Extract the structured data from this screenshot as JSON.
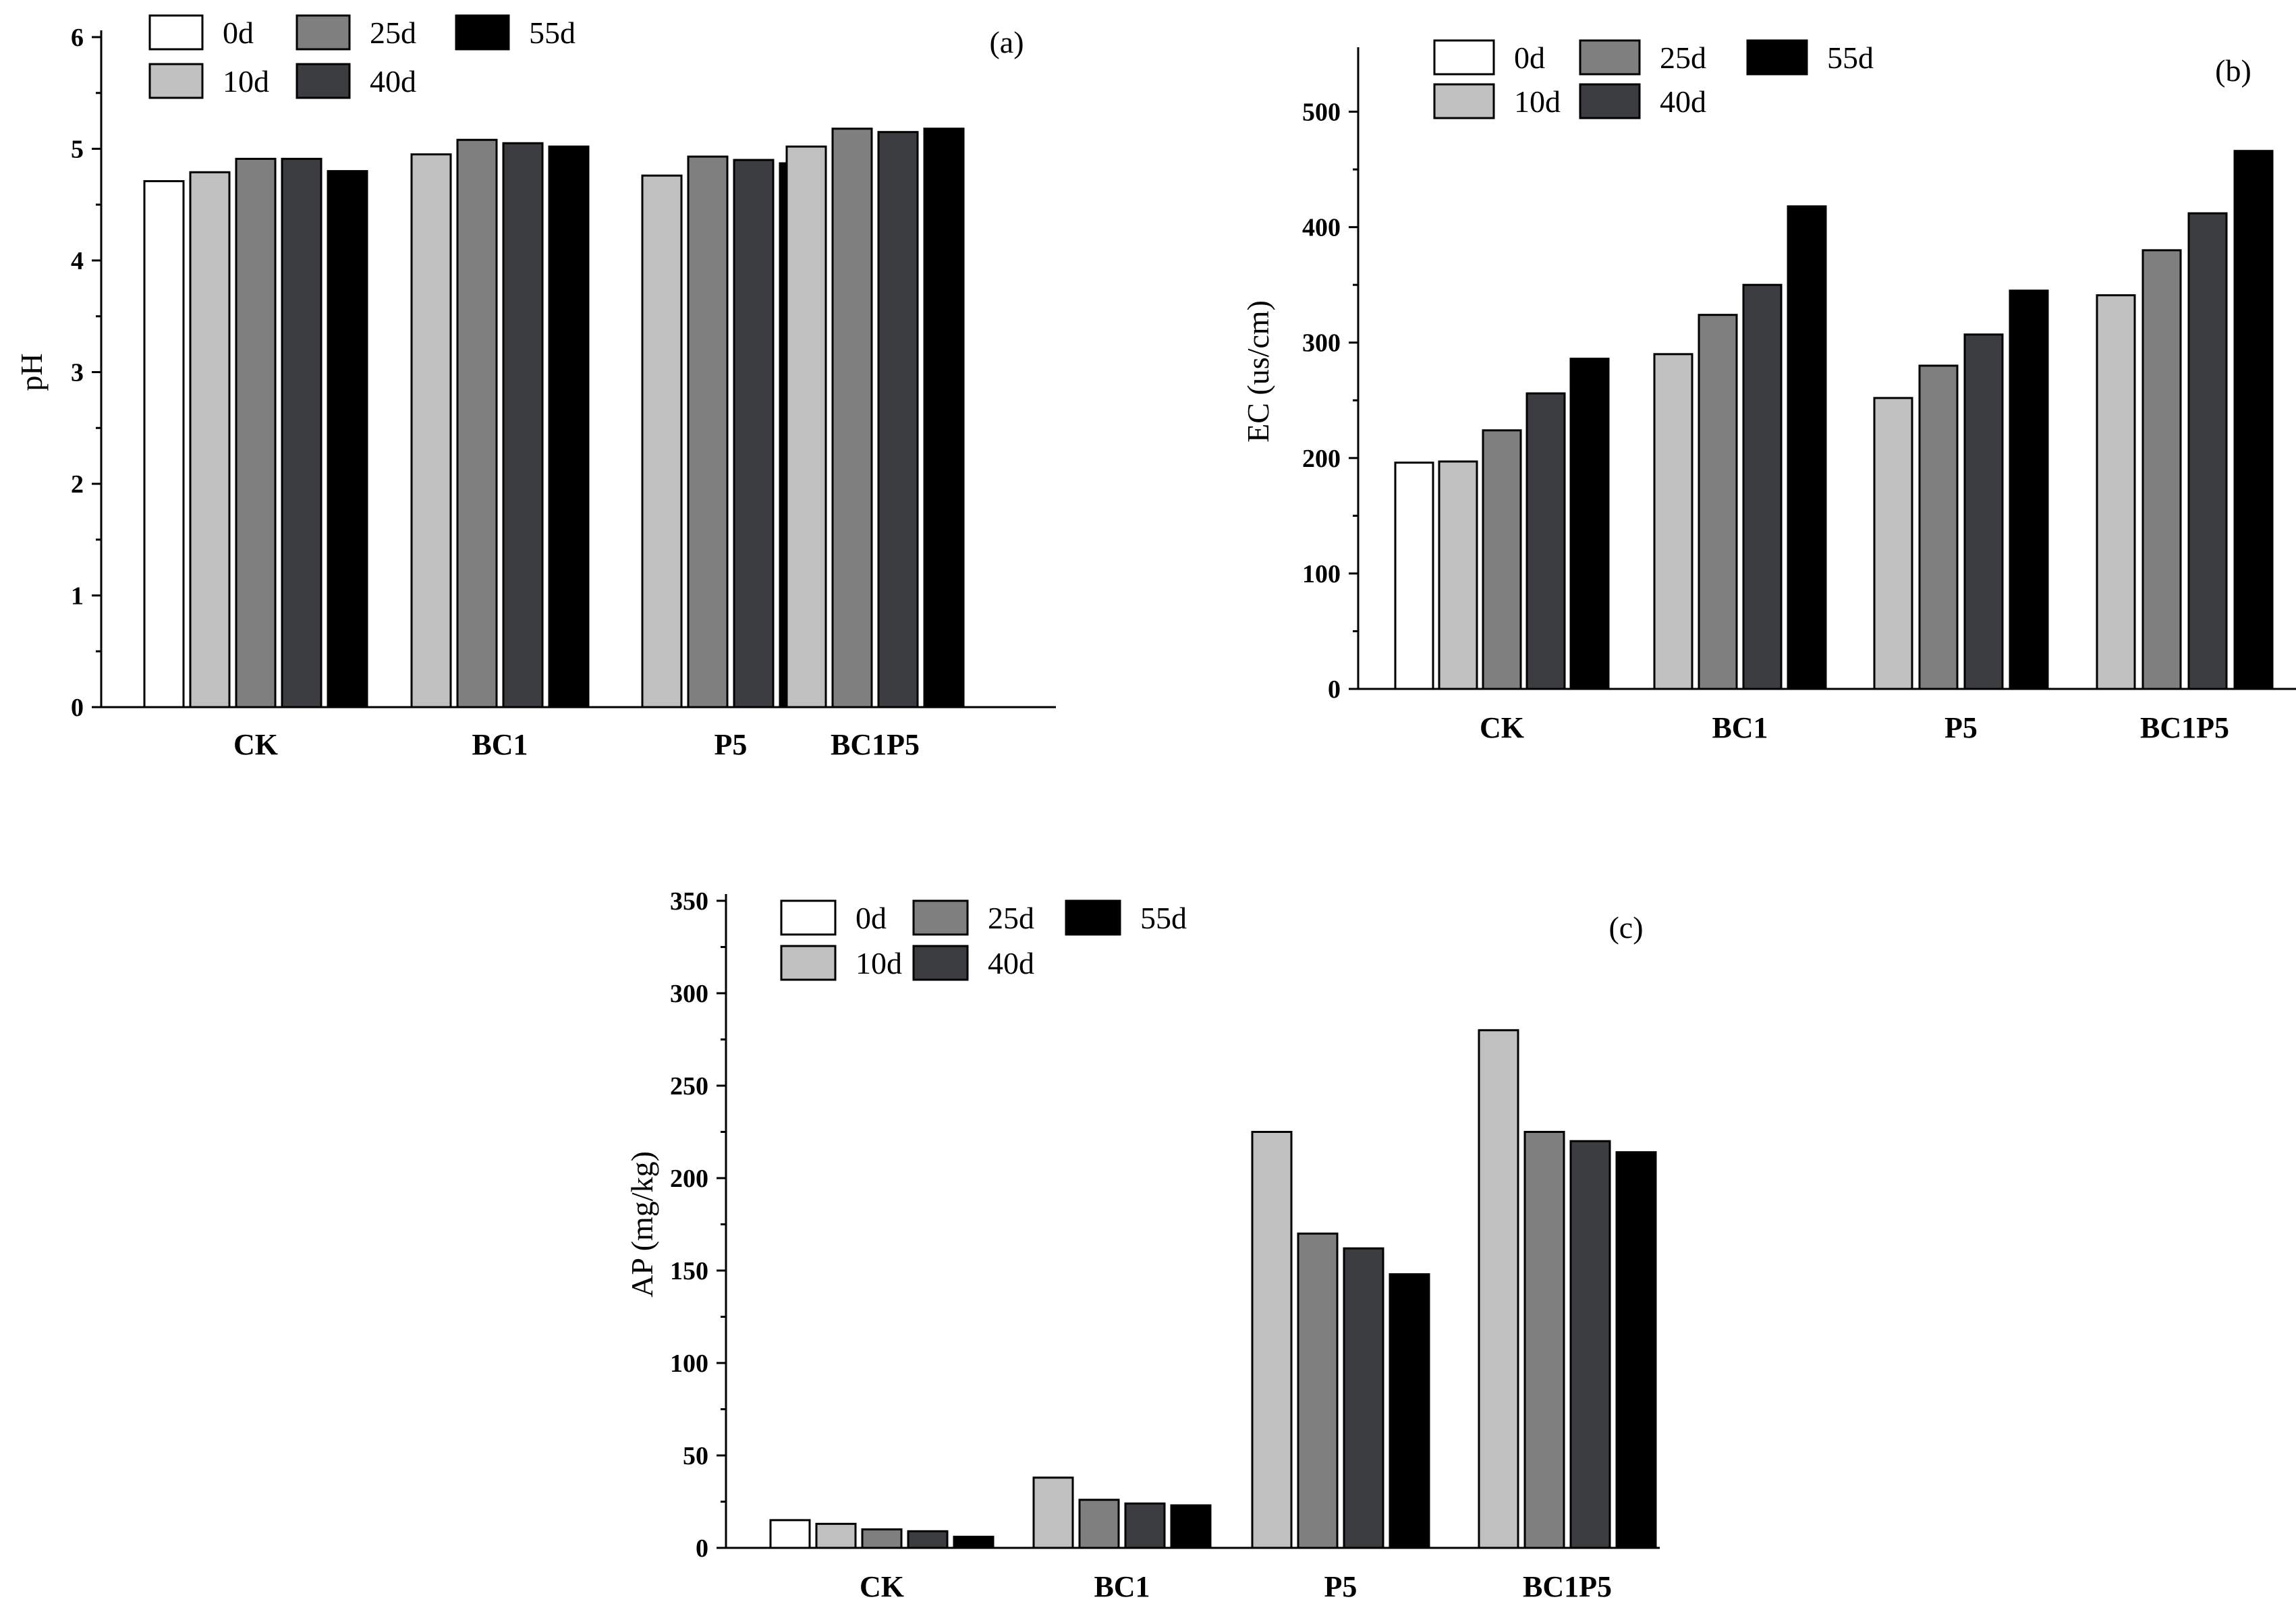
{
  "figure_title": "",
  "chart_data": [
    {
      "type": "bar",
      "panel": "(a)",
      "title": "",
      "xlabel": "",
      "ylabel": "pH",
      "ylim": [
        0,
        6
      ],
      "yticks": [
        "0",
        "1",
        "2",
        "3",
        "4",
        "5",
        "6"
      ],
      "grid": false,
      "legend_position": "top-left",
      "categories": [
        "CK",
        "BC1",
        "P5",
        "BC1P5"
      ],
      "series": [
        {
          "name": "0d",
          "color": "#ffffff",
          "values": [
            4.71,
            null,
            null,
            null
          ]
        },
        {
          "name": "10d",
          "color": "#c0c0c0",
          "values": [
            4.79,
            4.95,
            4.76,
            5.02
          ]
        },
        {
          "name": "25d",
          "color": "#7f7f7f",
          "values": [
            4.91,
            5.08,
            4.93,
            5.18
          ]
        },
        {
          "name": "40d",
          "color": "#3b3d40",
          "values": [
            4.91,
            5.05,
            4.9,
            5.15
          ]
        },
        {
          "name": "55d",
          "color": "#000000",
          "values": [
            4.8,
            5.02,
            4.87,
            5.18
          ]
        }
      ]
    },
    {
      "type": "bar",
      "panel": "(b)",
      "title": "",
      "xlabel": "",
      "ylabel": "EC (us/cm)",
      "ylim": [
        0,
        550
      ],
      "yticks": [
        "0",
        "100",
        "200",
        "300",
        "400",
        "500"
      ],
      "grid": false,
      "legend_position": "top-left",
      "categories": [
        "CK",
        "BC1",
        "P5",
        "BC1P5"
      ],
      "series": [
        {
          "name": "0d",
          "color": "#ffffff",
          "values": [
            196,
            null,
            null,
            null
          ]
        },
        {
          "name": "10d",
          "color": "#c0c0c0",
          "values": [
            197,
            290,
            252,
            341
          ]
        },
        {
          "name": "25d",
          "color": "#7f7f7f",
          "values": [
            224,
            324,
            280,
            380
          ]
        },
        {
          "name": "40d",
          "color": "#3b3d40",
          "values": [
            256,
            350,
            307,
            412
          ]
        },
        {
          "name": "55d",
          "color": "#000000",
          "values": [
            286,
            418,
            345,
            466
          ]
        }
      ]
    },
    {
      "type": "bar",
      "panel": "(c)",
      "title": "",
      "xlabel": "",
      "ylabel": "AP (mg/kg)",
      "ylim": [
        0,
        350
      ],
      "yticks": [
        "0",
        "50",
        "100",
        "150",
        "200",
        "250",
        "300",
        "350"
      ],
      "grid": false,
      "legend_position": "top-left",
      "categories": [
        "CK",
        "BC1",
        "P5",
        "BC1P5"
      ],
      "series": [
        {
          "name": "0d",
          "color": "#ffffff",
          "values": [
            15,
            null,
            null,
            null
          ]
        },
        {
          "name": "10d",
          "color": "#c0c0c0",
          "values": [
            13,
            38,
            225,
            280
          ]
        },
        {
          "name": "25d",
          "color": "#7f7f7f",
          "values": [
            10,
            26,
            170,
            225
          ]
        },
        {
          "name": "40d",
          "color": "#3b3d40",
          "values": [
            9,
            24,
            162,
            220
          ]
        },
        {
          "name": "55d",
          "color": "#000000",
          "values": [
            6,
            23,
            148,
            214
          ]
        }
      ]
    }
  ]
}
